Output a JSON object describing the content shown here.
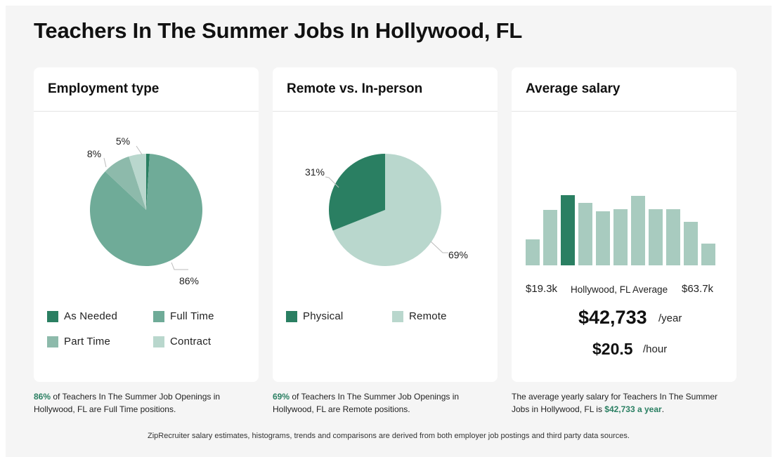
{
  "page": {
    "title": "Teachers In The Summer Jobs In Hollywood, FL"
  },
  "colors": {
    "dark_green": "#2a7f62",
    "medium_green": "#6fab98",
    "muted_green": "#8dbaab",
    "light_green": "#b9d7cd",
    "bar_light": "#a8cbbf",
    "highlight_text": "#2a7f62"
  },
  "employment": {
    "title": "Employment type",
    "legend": [
      {
        "label": "As Needed",
        "color": "#2a7f62"
      },
      {
        "label": "Full Time",
        "color": "#6fab98"
      },
      {
        "label": "Part Time",
        "color": "#8dbaab"
      },
      {
        "label": "Contract",
        "color": "#b9d7cd"
      }
    ],
    "caption_pct": "86%",
    "caption_rest": " of Teachers In The Summer Job Openings in Hollywood, FL are Full Time positions."
  },
  "remote": {
    "title": "Remote vs. In-person",
    "legend": [
      {
        "label": "Physical",
        "color": "#2a7f62"
      },
      {
        "label": "Remote",
        "color": "#b9d7cd"
      }
    ],
    "caption_pct": "69%",
    "caption_rest": " of Teachers In The Summer Job Openings in Hollywood, FL are Remote positions."
  },
  "salary": {
    "title": "Average salary",
    "min_label": "$19.3k",
    "avg_label": "Hollywood, FL Average",
    "max_label": "$63.7k",
    "yearly": "$42,733",
    "yearly_unit": "/year",
    "hourly": "$20.5",
    "hourly_unit": "/hour",
    "caption_pre": "The average yearly salary for Teachers In The Summer Jobs in Hollywood, FL is ",
    "caption_value": "$42,733 a year",
    "caption_post": "."
  },
  "footer": {
    "text": "ZipRecruiter salary estimates, histograms, trends and comparisons are derived from both employer job postings and third party data sources."
  },
  "chart_data": [
    {
      "type": "pie",
      "title": "Employment type",
      "categories": [
        "As Needed",
        "Full Time",
        "Part Time",
        "Contract"
      ],
      "values": [
        1,
        86,
        8,
        5
      ],
      "labels": [
        {
          "category": "Full Time",
          "text": "86%"
        },
        {
          "category": "Part Time",
          "text": "8%"
        },
        {
          "category": "Contract",
          "text": "5%"
        }
      ],
      "colors": [
        "#2a7f62",
        "#6fab98",
        "#8dbaab",
        "#b9d7cd"
      ],
      "legend_position": "bottom"
    },
    {
      "type": "pie",
      "title": "Remote vs. In-person",
      "categories": [
        "Remote",
        "Physical"
      ],
      "values": [
        69,
        31
      ],
      "labels": [
        {
          "category": "Remote",
          "text": "69%"
        },
        {
          "category": "Physical",
          "text": "31%"
        }
      ],
      "colors": [
        "#b9d7cd",
        "#2a7f62"
      ],
      "legend_position": "bottom"
    },
    {
      "type": "bar",
      "title": "Average salary",
      "xlim": [
        "$19.3k",
        "$63.7k"
      ],
      "values": [
        37,
        79,
        100,
        89,
        77,
        80,
        99,
        80,
        80,
        62,
        31
      ],
      "highlight_index": 2,
      "grid": false
    }
  ]
}
